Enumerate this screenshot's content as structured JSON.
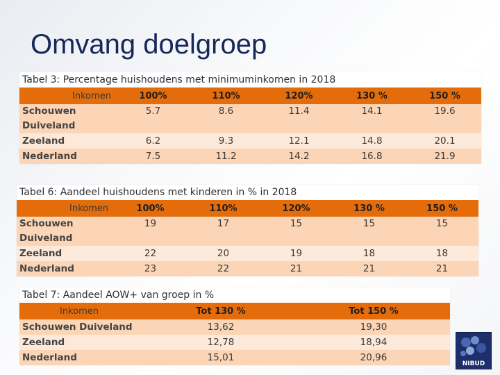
{
  "title": "Omvang doelgroep",
  "table3": {
    "caption": "Tabel 3: Percentage huishoudens met minimuminkomen in 2018",
    "headers": [
      "Inkomen",
      "100%",
      "110%",
      "120%",
      "130 %",
      "150 %"
    ],
    "rows": [
      {
        "label_line1": "Schouwen",
        "label_line2": "Duiveland",
        "values": [
          "5.7",
          "8.6",
          "11.4",
          "14.1",
          "19.6"
        ]
      },
      {
        "label_line1": "Zeeland",
        "values": [
          "6.2",
          "9.3",
          "12.1",
          "14.8",
          "20.1"
        ]
      },
      {
        "label_line1": "Nederland",
        "values": [
          "7.5",
          "11.2",
          "14.2",
          "16.8",
          "21.9"
        ]
      }
    ]
  },
  "table6": {
    "caption": "Tabel 6: Aandeel huishoudens met kinderen in % in 2018",
    "headers": [
      "Inkomen",
      "100%",
      "110%",
      "120%",
      "130 %",
      "150 %"
    ],
    "rows": [
      {
        "label_line1": "Schouwen",
        "label_line2": "Duiveland",
        "values": [
          "19",
          "17",
          "15",
          "15",
          "15"
        ]
      },
      {
        "label_line1": "Zeeland",
        "values": [
          "22",
          "20",
          "19",
          "18",
          "18"
        ]
      },
      {
        "label_line1": "Nederland",
        "values": [
          "23",
          "22",
          "21",
          "21",
          "21"
        ]
      }
    ]
  },
  "table7": {
    "caption": "Tabel 7: Aandeel AOW+ van groep in %",
    "headers": [
      "Inkomen",
      "Tot 130 %",
      "Tot 150 %"
    ],
    "rows": [
      {
        "label": "Schouwen Duiveland",
        "values": [
          "13,62",
          "19,30"
        ]
      },
      {
        "label": "Zeeland",
        "values": [
          "12,78",
          "18,94"
        ]
      },
      {
        "label": "Nederland",
        "values": [
          "15,01",
          "20,96"
        ]
      }
    ]
  },
  "logo": {
    "text": "NIBUD",
    "color": "#1d2f6b"
  }
}
